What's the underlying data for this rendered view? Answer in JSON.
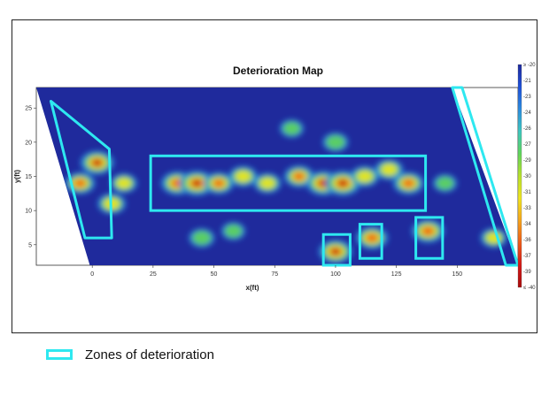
{
  "chart_data": {
    "type": "heatmap",
    "title": "Deterioration Map",
    "xlabel": "x(ft)",
    "ylabel": "y(ft)",
    "xlim": [
      -23,
      175
    ],
    "ylim": [
      2,
      28
    ],
    "x_ticks": [
      0,
      25,
      50,
      75,
      100,
      125,
      150
    ],
    "y_ticks": [
      5,
      10,
      15,
      20,
      25
    ],
    "colorbar": {
      "ticks": [
        "≥ -20",
        "-21",
        "-23",
        "-24",
        "-26",
        "-27",
        "-29",
        "-30",
        "-31",
        "-33",
        "-34",
        "-36",
        "-37",
        "-39",
        "≤ -40"
      ],
      "colors": [
        "#1f2a9c",
        "#1d4fd8",
        "#2a8be0",
        "#3cc7c0",
        "#5fd65a",
        "#b8e22a",
        "#f0e51e",
        "#f7a41a",
        "#ef5a17",
        "#d41818",
        "#a80c0c"
      ]
    },
    "hotspots": [
      {
        "x": 2,
        "y": 17,
        "v": 0.9
      },
      {
        "x": -5,
        "y": 14,
        "v": 0.7
      },
      {
        "x": 8,
        "y": 11,
        "v": 0.6
      },
      {
        "x": 13,
        "y": 14,
        "v": 0.5
      },
      {
        "x": 35,
        "y": 14,
        "v": 0.85
      },
      {
        "x": 43,
        "y": 14,
        "v": 1.0
      },
      {
        "x": 52,
        "y": 14,
        "v": 0.7
      },
      {
        "x": 62,
        "y": 15,
        "v": 0.6
      },
      {
        "x": 72,
        "y": 14,
        "v": 0.55
      },
      {
        "x": 85,
        "y": 15,
        "v": 0.7
      },
      {
        "x": 95,
        "y": 14,
        "v": 0.95
      },
      {
        "x": 103,
        "y": 14,
        "v": 1.0
      },
      {
        "x": 112,
        "y": 15,
        "v": 0.6
      },
      {
        "x": 122,
        "y": 16,
        "v": 0.6
      },
      {
        "x": 130,
        "y": 14,
        "v": 0.75
      },
      {
        "x": 100,
        "y": 4,
        "v": 0.9
      },
      {
        "x": 115,
        "y": 6,
        "v": 0.8
      },
      {
        "x": 138,
        "y": 7,
        "v": 0.85
      },
      {
        "x": 100,
        "y": 20,
        "v": 0.45
      },
      {
        "x": 45,
        "y": 6,
        "v": 0.45
      },
      {
        "x": 58,
        "y": 7,
        "v": 0.35
      },
      {
        "x": 82,
        "y": 22,
        "v": 0.35
      },
      {
        "x": 165,
        "y": 6,
        "v": 0.5
      },
      {
        "x": 145,
        "y": 14,
        "v": 0.35
      }
    ],
    "deterioration_zones": [
      {
        "shape": "polygon",
        "points": [
          [
            -17,
            26
          ],
          [
            7,
            19
          ],
          [
            8,
            6
          ],
          [
            -3,
            6
          ]
        ]
      },
      {
        "shape": "rect",
        "x": [
          24,
          137
        ],
        "y": [
          10,
          18
        ]
      },
      {
        "shape": "rect",
        "x": [
          95,
          106
        ],
        "y": [
          2,
          6.5
        ]
      },
      {
        "shape": "rect",
        "x": [
          110,
          119
        ],
        "y": [
          3,
          8
        ]
      },
      {
        "shape": "rect",
        "x": [
          133,
          144
        ],
        "y": [
          3,
          9
        ]
      },
      {
        "shape": "polygon",
        "points": [
          [
            148,
            28
          ],
          [
            152,
            28
          ],
          [
            175,
            2
          ],
          [
            170,
            2
          ]
        ]
      }
    ]
  },
  "legend": {
    "label": "Zones of deterioration",
    "color": "#2ee8f0"
  }
}
